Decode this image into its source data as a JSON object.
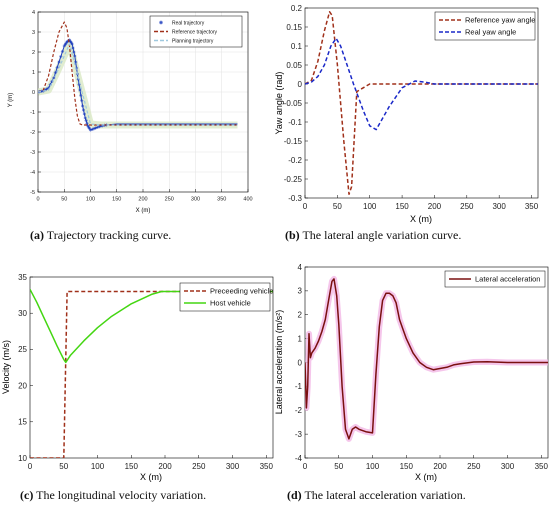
{
  "chart_data": [
    {
      "id": "a",
      "type": "line",
      "caption_letter": "(a)",
      "caption_text": " Trajectory tracking curve.",
      "xlabel": "X (m)",
      "ylabel": "Y (m)",
      "xlim": [
        0,
        400
      ],
      "ylim": [
        -5,
        4
      ],
      "xticks": [
        "0",
        "50",
        "100",
        "150",
        "200",
        "250",
        "300",
        "350",
        "400"
      ],
      "yticks": [
        "-5",
        "-4",
        "-3",
        "-2",
        "-1",
        "0",
        "1",
        "2",
        "3",
        "4"
      ],
      "legend_position": "top-right",
      "series": [
        {
          "name": "Real trajectory",
          "color": "#1f3fbf",
          "style": "star-markers",
          "x": [
            0,
            10,
            20,
            30,
            40,
            50,
            55,
            60,
            65,
            70,
            75,
            80,
            85,
            90,
            95,
            100,
            110,
            120,
            130,
            150,
            200,
            250,
            300,
            350,
            380
          ],
          "y": [
            0,
            0.05,
            0.2,
            0.7,
            1.5,
            2.3,
            2.5,
            2.6,
            2.4,
            1.8,
            0.9,
            0.1,
            -0.7,
            -1.3,
            -1.7,
            -1.9,
            -1.8,
            -1.7,
            -1.65,
            -1.6,
            -1.6,
            -1.6,
            -1.6,
            -1.6,
            -1.6
          ]
        },
        {
          "name": "Reference trajectory",
          "color": "#a0301a",
          "style": "dashed",
          "x": [
            0,
            10,
            20,
            30,
            40,
            50,
            55,
            60,
            65,
            70,
            75,
            80,
            85,
            90,
            100,
            120,
            150,
            200,
            300,
            380
          ],
          "y": [
            0,
            0.1,
            0.8,
            2.0,
            3.0,
            3.5,
            3.2,
            2.3,
            1.0,
            -0.3,
            -1.2,
            -1.6,
            -1.65,
            -1.65,
            -1.65,
            -1.65,
            -1.65,
            -1.65,
            -1.65,
            -1.65
          ]
        },
        {
          "name": "Planning trajectory",
          "color": "#9fc8de",
          "style": "dashed",
          "x": [
            0,
            20,
            40,
            60,
            80,
            100,
            120,
            150,
            200,
            300,
            380
          ],
          "y": [
            0,
            0.1,
            1.2,
            2.4,
            0.4,
            -1.6,
            -1.65,
            -1.65,
            -1.65,
            -1.65,
            -1.65
          ]
        }
      ]
    },
    {
      "id": "b",
      "type": "line",
      "caption_letter": "(b)",
      "caption_text": " The lateral angle variation curve.",
      "xlabel": "X (m)",
      "ylabel": "Yaw angle (rad)",
      "xlim": [
        0,
        360
      ],
      "ylim": [
        -0.3,
        0.2
      ],
      "xticks": [
        "0",
        "50",
        "100",
        "150",
        "200",
        "250",
        "300",
        "350"
      ],
      "yticks": [
        "0.2",
        "0.15",
        "0.1",
        "0.05",
        "0",
        "-0.05",
        "-0.1",
        "-0.15",
        "-0.2",
        "-0.25",
        "-0.3"
      ],
      "legend_position": "top-right",
      "series": [
        {
          "name": "Reference yaw angle",
          "color": "#a0301a",
          "style": "dashed",
          "x": [
            0,
            10,
            20,
            30,
            38,
            42,
            50,
            60,
            68,
            72,
            80,
            100,
            150,
            200,
            300,
            360
          ],
          "y": [
            0,
            0.01,
            0.06,
            0.14,
            0.19,
            0.18,
            0.05,
            -0.15,
            -0.29,
            -0.27,
            -0.02,
            0,
            0,
            0,
            0,
            0
          ]
        },
        {
          "name": "Real yaw angle",
          "color": "#1a28c8",
          "style": "dashed",
          "x": [
            0,
            10,
            20,
            30,
            40,
            48,
            55,
            65,
            75,
            90,
            100,
            110,
            130,
            150,
            170,
            185,
            200,
            250,
            300,
            360
          ],
          "y": [
            0,
            0.005,
            0.02,
            0.05,
            0.1,
            0.12,
            0.1,
            0.05,
            0,
            -0.07,
            -0.11,
            -0.12,
            -0.06,
            -0.01,
            0.008,
            0.005,
            0,
            0,
            0,
            0
          ]
        }
      ]
    },
    {
      "id": "c",
      "type": "line",
      "caption_letter": "(c)",
      "caption_text": " The longitudinal velocity variation.",
      "xlabel": "X (m)",
      "ylabel": "Velocity (m/s)",
      "xlim": [
        0,
        360
      ],
      "ylim": [
        10,
        35
      ],
      "xticks": [
        "0",
        "50",
        "100",
        "150",
        "200",
        "250",
        "300",
        "350"
      ],
      "yticks": [
        "10",
        "15",
        "20",
        "25",
        "30",
        "35"
      ],
      "legend_position": "top-right",
      "series": [
        {
          "name": "Preceeding vehicle",
          "color": "#a0301a",
          "style": "dashed",
          "x": [
            0,
            50,
            55,
            360
          ],
          "y": [
            10,
            10,
            33,
            33
          ]
        },
        {
          "name": "Host vehicle",
          "color": "#44d612",
          "style": "solid",
          "x": [
            0,
            10,
            20,
            30,
            40,
            50,
            53,
            60,
            80,
            100,
            120,
            150,
            180,
            195,
            200,
            250,
            300,
            360
          ],
          "y": [
            33.3,
            31.5,
            29.5,
            27.5,
            25.5,
            23.6,
            23.2,
            24.2,
            26.2,
            28.0,
            29.5,
            31.3,
            32.6,
            33.0,
            33.0,
            33.0,
            33.0,
            33.0
          ]
        }
      ]
    },
    {
      "id": "d",
      "type": "line",
      "caption_letter": "(d)",
      "caption_text": " The lateral acceleration variation.",
      "xlabel": "X (m)",
      "ylabel": "Lateral acceleration (m/s²)",
      "xlim": [
        0,
        360
      ],
      "ylim": [
        -4,
        4
      ],
      "xticks": [
        "0",
        "50",
        "100",
        "150",
        "200",
        "250",
        "300",
        "350"
      ],
      "yticks": [
        "4",
        "3",
        "2",
        "1",
        "0",
        "-1",
        "-2",
        "-3",
        "-4"
      ],
      "legend_position": "top-right",
      "series": [
        {
          "name": "Lateral acceleration",
          "color": "#7a1010",
          "style": "solid",
          "x": [
            0,
            2,
            4,
            6,
            8,
            10,
            15,
            20,
            25,
            30,
            35,
            40,
            43,
            47,
            50,
            55,
            60,
            65,
            70,
            75,
            80,
            90,
            100,
            105,
            110,
            115,
            120,
            125,
            130,
            135,
            140,
            145,
            150,
            160,
            170,
            180,
            190,
            200,
            210,
            220,
            230,
            250,
            270,
            300,
            330,
            360
          ],
          "y": [
            0,
            -1.9,
            -1.0,
            1.2,
            0.2,
            0.4,
            0.6,
            0.9,
            1.3,
            1.8,
            2.6,
            3.4,
            3.5,
            2.8,
            1.6,
            -1.0,
            -2.8,
            -3.2,
            -2.8,
            -2.7,
            -2.8,
            -2.9,
            -2.95,
            -0.5,
            1.5,
            2.6,
            2.9,
            2.9,
            2.8,
            2.5,
            1.8,
            1.4,
            1.0,
            0.4,
            0.0,
            -0.2,
            -0.3,
            -0.25,
            -0.2,
            -0.1,
            -0.05,
            0.02,
            0.03,
            0.0,
            0.0,
            0.0
          ]
        }
      ]
    }
  ]
}
